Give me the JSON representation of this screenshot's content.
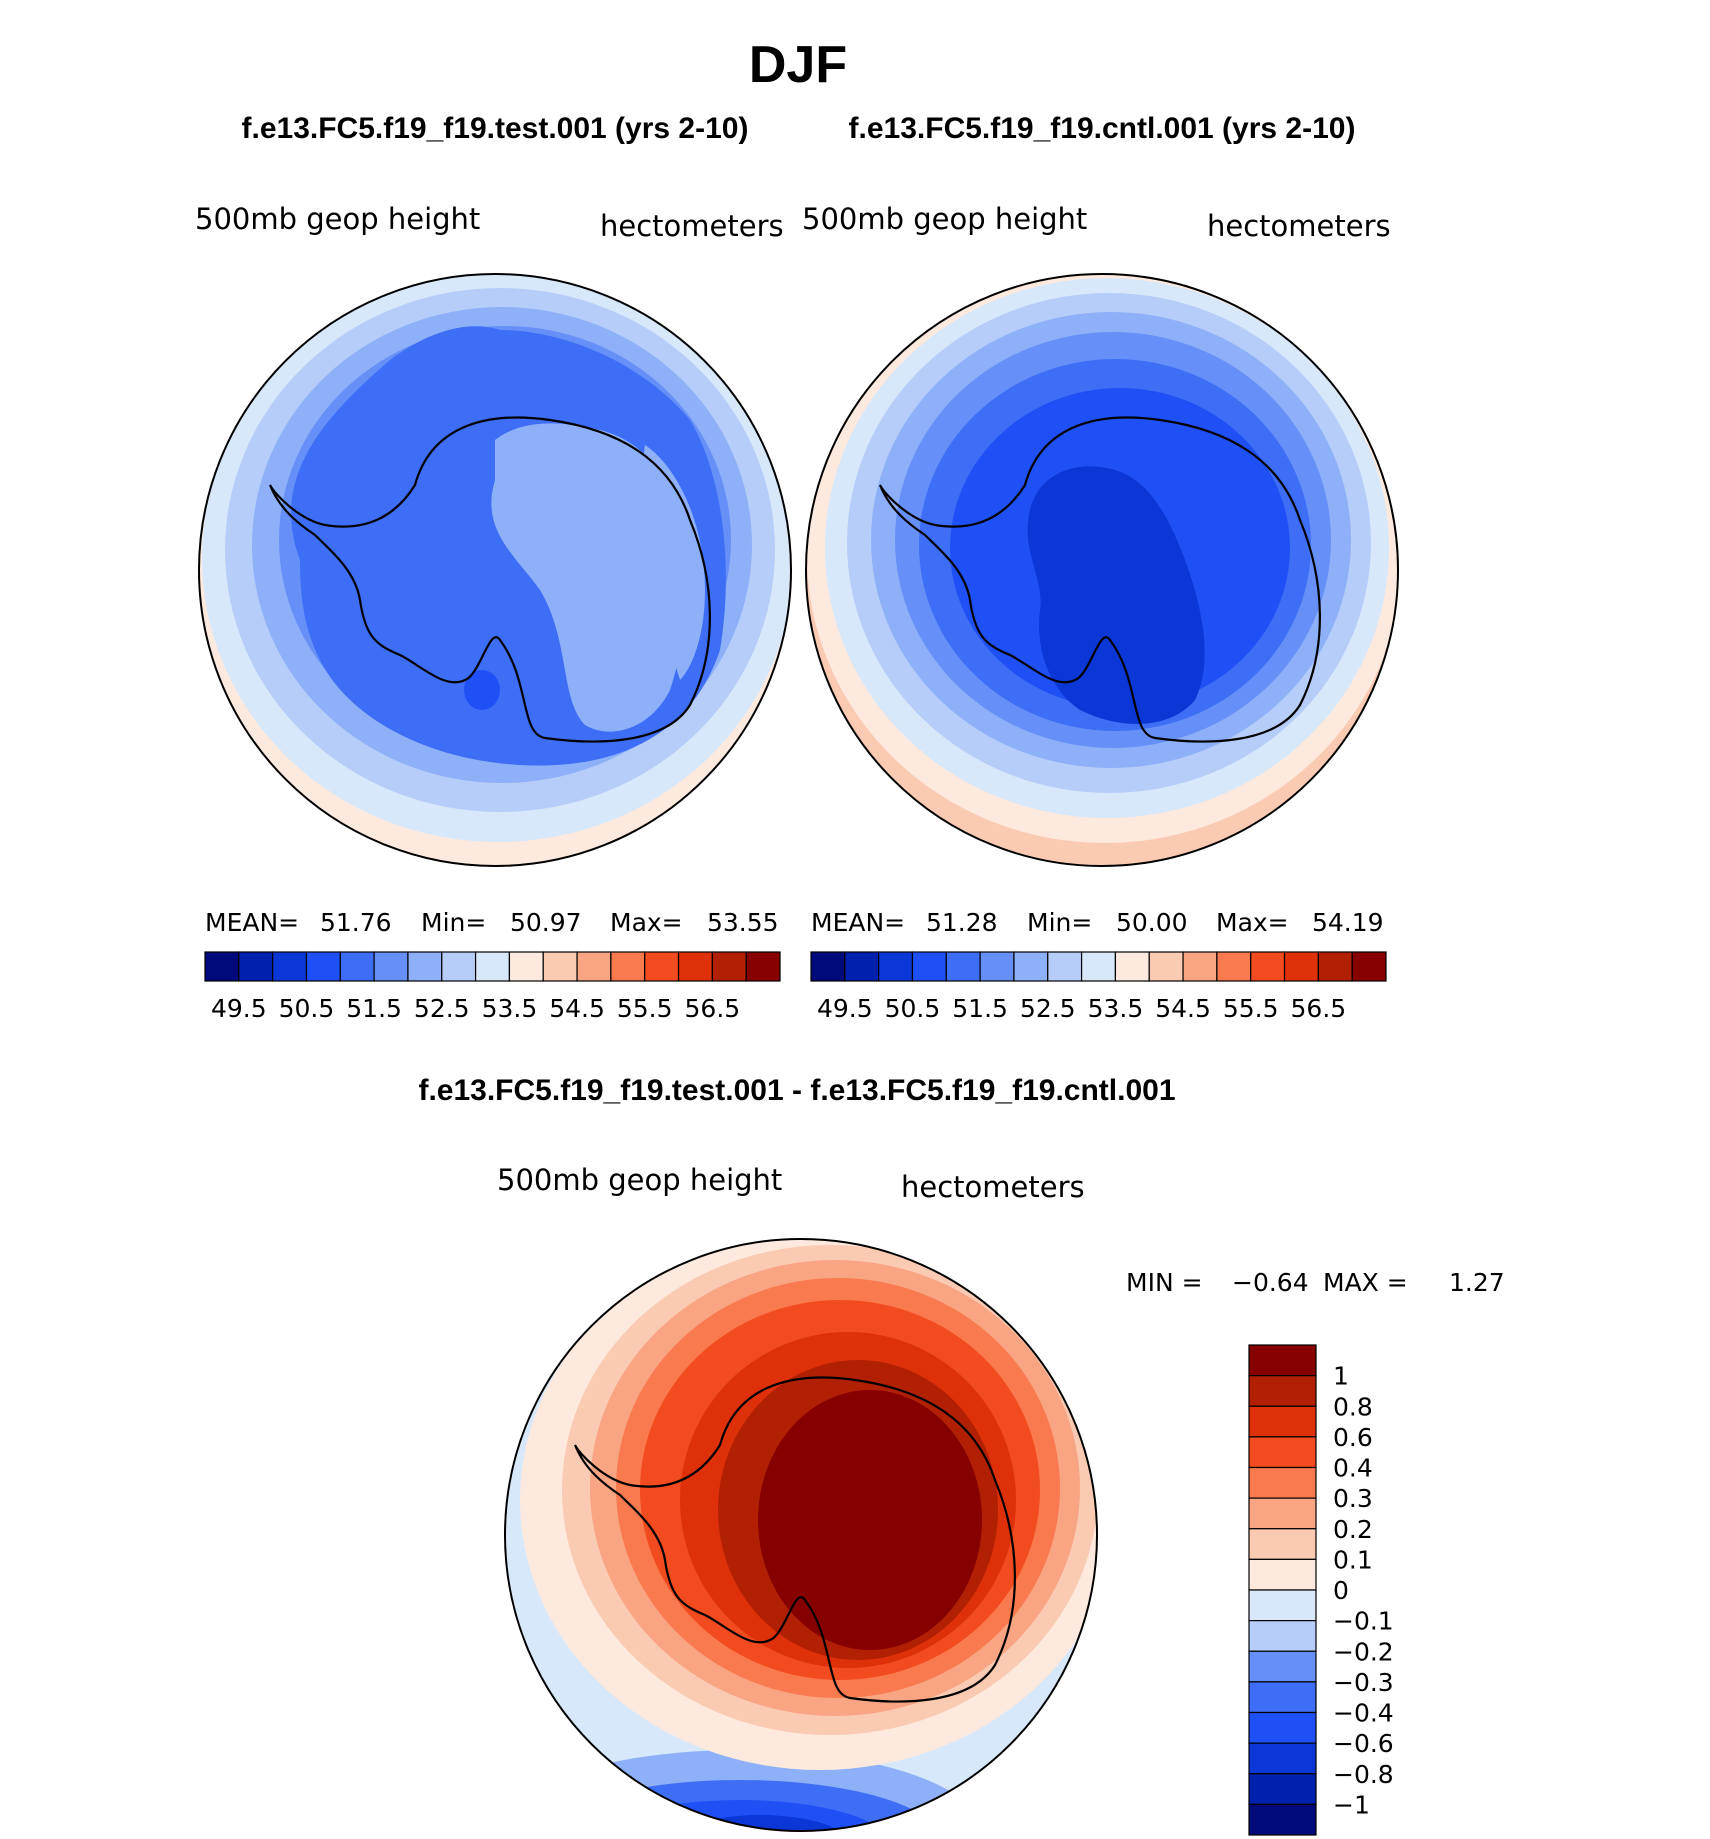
{
  "page_title": "DJF",
  "colors": {
    "blue_scale": [
      "#000a7a",
      "#0021ad",
      "#0a37d6",
      "#1f50f5",
      "#3d6ef5",
      "#6690f7",
      "#8db0f8",
      "#b6cdfa",
      "#d8e8fb",
      "#fde9dd",
      "#fbcab3",
      "#f9a482",
      "#f97a4e",
      "#f24b1f",
      "#de3109",
      "#b22003",
      "#870000"
    ],
    "diff_scale": [
      "#000a7a",
      "#0021ad",
      "#0a37d6",
      "#1f50f5",
      "#3d6ef5",
      "#6690f7",
      "#b6cdfa",
      "#d8e8fb",
      "#fde9dd",
      "#fbcab3",
      "#f9a482",
      "#f97a4e",
      "#f24b1f",
      "#de3109",
      "#b22003",
      "#870000"
    ]
  },
  "chart_data": [
    {
      "type": "heatmap",
      "id": "test",
      "title": "f.e13.FC5.f19_f19.test.001 (yrs 2-10)",
      "left_label": "500mb geop height",
      "right_label": "hectometers",
      "stats": {
        "mean_label": "MEAN=",
        "mean": "51.76",
        "min_label": "Min=",
        "min": "50.97",
        "max_label": "Max=",
        "max": "53.55"
      },
      "levels": [
        "49.5",
        "50",
        "50.5",
        "51",
        "51.5",
        "52",
        "52.5",
        "53",
        "53.5",
        "54",
        "54.5",
        "55",
        "55.5",
        "56",
        "56.5",
        "57"
      ],
      "tick_labels": [
        "49.5",
        "50.5",
        "51.5",
        "52.5",
        "53.5",
        "54.5",
        "55.5",
        "56.5"
      ],
      "field_rings": [
        {
          "level": "53.5",
          "color_index": 9
        },
        {
          "level": "53",
          "color_index": 8
        },
        {
          "level": "52.5",
          "color_index": 7
        },
        {
          "level": "52",
          "color_index": 6
        },
        {
          "level": "51.5",
          "color_index": 5
        },
        {
          "level": "51",
          "color_index": 4
        },
        {
          "level": "50.5",
          "color_index": 3
        }
      ]
    },
    {
      "type": "heatmap",
      "id": "cntl",
      "title": "f.e13.FC5.f19_f19.cntl.001 (yrs 2-10)",
      "left_label": "500mb geop height",
      "right_label": "hectometers",
      "stats": {
        "mean_label": "MEAN=",
        "mean": "51.28",
        "min_label": "Min=",
        "min": "50.00",
        "max_label": "Max=",
        "max": "54.19"
      },
      "levels": [
        "49.5",
        "50",
        "50.5",
        "51",
        "51.5",
        "52",
        "52.5",
        "53",
        "53.5",
        "54",
        "54.5",
        "55",
        "55.5",
        "56",
        "56.5",
        "57"
      ],
      "tick_labels": [
        "49.5",
        "50.5",
        "51.5",
        "52.5",
        "53.5",
        "54.5",
        "55.5",
        "56.5"
      ]
    },
    {
      "type": "heatmap",
      "id": "diff",
      "title": "f.e13.FC5.f19_f19.test.001 - f.e13.FC5.f19_f19.cntl.001",
      "left_label": "500mb geop height",
      "right_label": "hectometers",
      "stats": {
        "min_label": "MIN =",
        "min": "−0.64",
        "max_label": "MAX =",
        "max": "1.27"
      },
      "colorbar_labels": [
        "1",
        "0.8",
        "0.6",
        "0.4",
        "0.3",
        "0.2",
        "0.1",
        "0",
        "−0.1",
        "−0.2",
        "−0.3",
        "−0.4",
        "−0.6",
        "−0.8",
        "−1"
      ]
    }
  ]
}
